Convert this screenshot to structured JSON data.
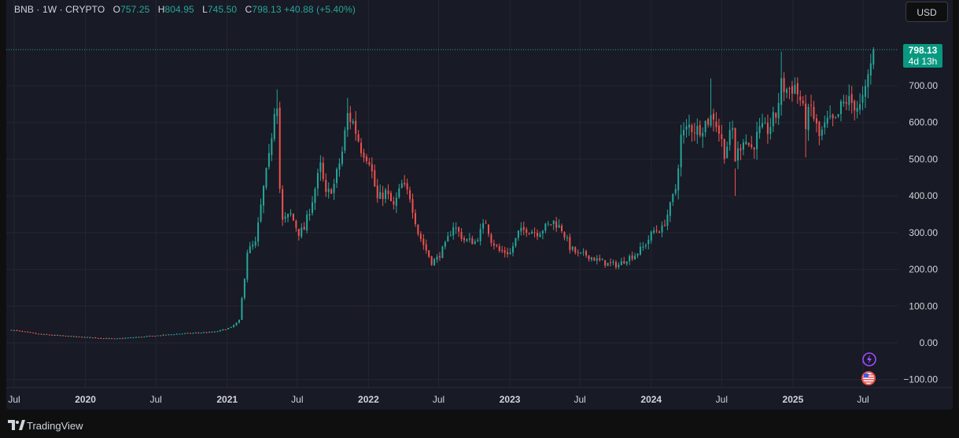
{
  "legend": {
    "symbol": "BNB",
    "interval": "1W",
    "exchange": "CRYPTO",
    "open_label": "O",
    "open": "757.25",
    "high_label": "H",
    "high": "804.95",
    "low_label": "L",
    "low": "745.50",
    "close_label": "C",
    "close": "798.13",
    "change": "+40.88 (+5.40%)"
  },
  "currency_button": "USD",
  "last_price": {
    "value": "798.13",
    "countdown": "4d 13h"
  },
  "footer": {
    "brand": "TradingView"
  },
  "colors": {
    "background": "#181a25",
    "grid": "#242733",
    "up": "#26a69a",
    "down": "#ef5350",
    "axis_text": "#d1d4dc",
    "price_line": "#26a69a",
    "price_tag": "#089981"
  },
  "icons": [
    "lightning-event-icon",
    "us-flag-event-icon",
    "tradingview-logo-icon"
  ],
  "chart_data": {
    "type": "candlestick",
    "title": "",
    "last_value": 798.13,
    "grid": true,
    "y_axis": {
      "position": "right",
      "range": [
        -100,
        800
      ],
      "ticks": [
        {
          "v": 700,
          "label": "700.00"
        },
        {
          "v": 600,
          "label": "600.00"
        },
        {
          "v": 500,
          "label": "500.00"
        },
        {
          "v": 400,
          "label": "400.00"
        },
        {
          "v": 300,
          "label": "300.00"
        },
        {
          "v": 200,
          "label": "200.00"
        },
        {
          "v": 100,
          "label": "100.00"
        },
        {
          "v": 0,
          "label": "0.00"
        },
        {
          "v": -100,
          "label": "−100.00"
        }
      ]
    },
    "x_axis": {
      "range": [
        "2019-06-24",
        "2025-08-04"
      ],
      "ticks": [
        {
          "date": "2019-07-01",
          "label": "Jul",
          "bold": false
        },
        {
          "date": "2020-01-01",
          "label": "2020",
          "bold": true
        },
        {
          "date": "2020-07-01",
          "label": "Jul",
          "bold": false
        },
        {
          "date": "2021-01-01",
          "label": "2021",
          "bold": true
        },
        {
          "date": "2021-07-01",
          "label": "Jul",
          "bold": false
        },
        {
          "date": "2022-01-01",
          "label": "2022",
          "bold": true
        },
        {
          "date": "2022-07-01",
          "label": "Jul",
          "bold": false
        },
        {
          "date": "2023-01-01",
          "label": "2023",
          "bold": true
        },
        {
          "date": "2023-07-01",
          "label": "Jul",
          "bold": false
        },
        {
          "date": "2024-01-01",
          "label": "2024",
          "bold": true
        },
        {
          "date": "2024-07-01",
          "label": "Jul",
          "bold": false
        },
        {
          "date": "2025-01-01",
          "label": "2025",
          "bold": true
        },
        {
          "date": "2025-07-01",
          "label": "Jul",
          "bold": false
        }
      ]
    },
    "price_path": [
      [
        "2019-06-24",
        35
      ],
      [
        "2019-09-01",
        24
      ],
      [
        "2019-12-01",
        17
      ],
      [
        "2020-03-16",
        11
      ],
      [
        "2020-06-01",
        17
      ],
      [
        "2020-09-01",
        25
      ],
      [
        "2020-12-01",
        30
      ],
      [
        "2021-01-11",
        42
      ],
      [
        "2021-02-01",
        60
      ],
      [
        "2021-02-15",
        180
      ],
      [
        "2021-02-22",
        250
      ],
      [
        "2021-03-15",
        270
      ],
      [
        "2021-04-05",
        420
      ],
      [
        "2021-04-19",
        500
      ],
      [
        "2021-05-03",
        640
      ],
      [
        "2021-05-10",
        660
      ],
      [
        "2021-05-17",
        420
      ],
      [
        "2021-05-24",
        330
      ],
      [
        "2021-06-14",
        350
      ],
      [
        "2021-07-05",
        300
      ],
      [
        "2021-07-19",
        310
      ],
      [
        "2021-08-09",
        390
      ],
      [
        "2021-08-30",
        480
      ],
      [
        "2021-09-13",
        400
      ],
      [
        "2021-10-04",
        430
      ],
      [
        "2021-10-25",
        520
      ],
      [
        "2021-11-08",
        620
      ],
      [
        "2021-11-22",
        600
      ],
      [
        "2021-12-13",
        530
      ],
      [
        "2022-01-03",
        500
      ],
      [
        "2022-01-24",
        390
      ],
      [
        "2022-02-14",
        410
      ],
      [
        "2022-03-07",
        370
      ],
      [
        "2022-03-28",
        430
      ],
      [
        "2022-04-18",
        400
      ],
      [
        "2022-05-09",
        300
      ],
      [
        "2022-06-13",
        220
      ],
      [
        "2022-06-27",
        230
      ],
      [
        "2022-07-18",
        265
      ],
      [
        "2022-08-08",
        320
      ],
      [
        "2022-09-05",
        280
      ],
      [
        "2022-10-03",
        275
      ],
      [
        "2022-10-31",
        330
      ],
      [
        "2022-11-14",
        280
      ],
      [
        "2022-12-05",
        250
      ],
      [
        "2023-01-02",
        245
      ],
      [
        "2023-01-23",
        300
      ],
      [
        "2023-02-13",
        310
      ],
      [
        "2023-03-13",
        300
      ],
      [
        "2023-04-03",
        315
      ],
      [
        "2023-04-24",
        330
      ],
      [
        "2023-05-15",
        310
      ],
      [
        "2023-06-05",
        260
      ],
      [
        "2023-06-26",
        240
      ],
      [
        "2023-07-17",
        240
      ],
      [
        "2023-08-14",
        225
      ],
      [
        "2023-09-11",
        215
      ],
      [
        "2023-10-09",
        212
      ],
      [
        "2023-10-30",
        230
      ],
      [
        "2023-11-20",
        240
      ],
      [
        "2023-12-11",
        260
      ],
      [
        "2024-01-08",
        305
      ],
      [
        "2024-01-29",
        310
      ],
      [
        "2024-02-19",
        370
      ],
      [
        "2024-03-04",
        420
      ],
      [
        "2024-03-18",
        560
      ],
      [
        "2024-04-08",
        590
      ],
      [
        "2024-04-29",
        580
      ],
      [
        "2024-05-20",
        600
      ],
      [
        "2024-06-10",
        620
      ],
      [
        "2024-06-24",
        575
      ],
      [
        "2024-07-08",
        520
      ],
      [
        "2024-07-29",
        580
      ],
      [
        "2024-08-05",
        500
      ],
      [
        "2024-08-26",
        560
      ],
      [
        "2024-09-16",
        530
      ],
      [
        "2024-10-07",
        575
      ],
      [
        "2024-10-28",
        580
      ],
      [
        "2024-11-18",
        620
      ],
      [
        "2024-12-02",
        700
      ],
      [
        "2024-12-16",
        690
      ],
      [
        "2025-01-06",
        700
      ],
      [
        "2025-01-20",
        660
      ],
      [
        "2025-02-03",
        600
      ],
      [
        "2025-02-17",
        640
      ],
      [
        "2025-03-10",
        560
      ],
      [
        "2025-03-31",
        600
      ],
      [
        "2025-04-21",
        600
      ],
      [
        "2025-05-05",
        640
      ],
      [
        "2025-05-19",
        660
      ],
      [
        "2025-06-09",
        650
      ],
      [
        "2025-06-23",
        640
      ],
      [
        "2025-07-07",
        680
      ],
      [
        "2025-07-21",
        760
      ],
      [
        "2025-07-28",
        798.13
      ]
    ],
    "notable_wicks": [
      {
        "date": "2021-05-10",
        "high": 690
      },
      {
        "date": "2021-11-08",
        "high": 667
      },
      {
        "date": "2024-06-03",
        "high": 720
      },
      {
        "date": "2024-08-05",
        "high": 400
      },
      {
        "date": "2024-12-02",
        "high": 793
      },
      {
        "date": "2025-02-03",
        "low": 505
      },
      {
        "date": "2025-07-28",
        "high": 804.95,
        "low": 745.5
      }
    ]
  }
}
